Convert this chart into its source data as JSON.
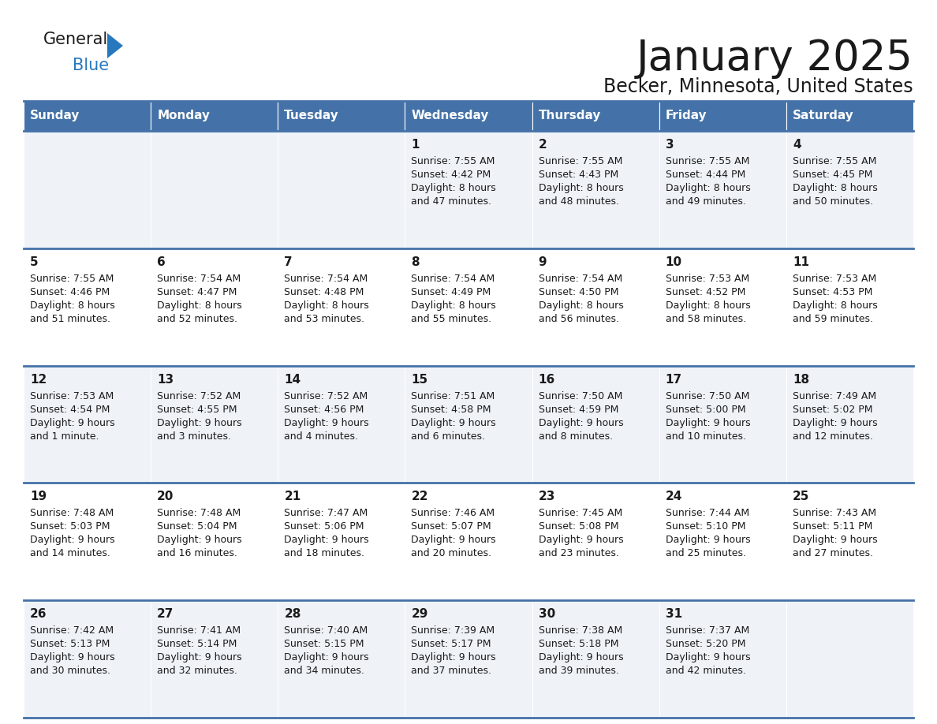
{
  "title": "January 2025",
  "subtitle": "Becker, Minnesota, United States",
  "header_color": "#4472a8",
  "header_text_color": "#ffffff",
  "cell_bg_even": "#eff3f8",
  "cell_bg_odd": "#ffffff",
  "separator_color": "#4472a8",
  "text_color": "#1a1a1a",
  "day_names": [
    "Sunday",
    "Monday",
    "Tuesday",
    "Wednesday",
    "Thursday",
    "Friday",
    "Saturday"
  ],
  "days": [
    {
      "day": 1,
      "col": 3,
      "row": 0,
      "sunrise": "7:55 AM",
      "sunset": "4:42 PM",
      "daylight_line1": "Daylight: 8 hours",
      "daylight_line2": "and 47 minutes."
    },
    {
      "day": 2,
      "col": 4,
      "row": 0,
      "sunrise": "7:55 AM",
      "sunset": "4:43 PM",
      "daylight_line1": "Daylight: 8 hours",
      "daylight_line2": "and 48 minutes."
    },
    {
      "day": 3,
      "col": 5,
      "row": 0,
      "sunrise": "7:55 AM",
      "sunset": "4:44 PM",
      "daylight_line1": "Daylight: 8 hours",
      "daylight_line2": "and 49 minutes."
    },
    {
      "day": 4,
      "col": 6,
      "row": 0,
      "sunrise": "7:55 AM",
      "sunset": "4:45 PM",
      "daylight_line1": "Daylight: 8 hours",
      "daylight_line2": "and 50 minutes."
    },
    {
      "day": 5,
      "col": 0,
      "row": 1,
      "sunrise": "7:55 AM",
      "sunset": "4:46 PM",
      "daylight_line1": "Daylight: 8 hours",
      "daylight_line2": "and 51 minutes."
    },
    {
      "day": 6,
      "col": 1,
      "row": 1,
      "sunrise": "7:54 AM",
      "sunset": "4:47 PM",
      "daylight_line1": "Daylight: 8 hours",
      "daylight_line2": "and 52 minutes."
    },
    {
      "day": 7,
      "col": 2,
      "row": 1,
      "sunrise": "7:54 AM",
      "sunset": "4:48 PM",
      "daylight_line1": "Daylight: 8 hours",
      "daylight_line2": "and 53 minutes."
    },
    {
      "day": 8,
      "col": 3,
      "row": 1,
      "sunrise": "7:54 AM",
      "sunset": "4:49 PM",
      "daylight_line1": "Daylight: 8 hours",
      "daylight_line2": "and 55 minutes."
    },
    {
      "day": 9,
      "col": 4,
      "row": 1,
      "sunrise": "7:54 AM",
      "sunset": "4:50 PM",
      "daylight_line1": "Daylight: 8 hours",
      "daylight_line2": "and 56 minutes."
    },
    {
      "day": 10,
      "col": 5,
      "row": 1,
      "sunrise": "7:53 AM",
      "sunset": "4:52 PM",
      "daylight_line1": "Daylight: 8 hours",
      "daylight_line2": "and 58 minutes."
    },
    {
      "day": 11,
      "col": 6,
      "row": 1,
      "sunrise": "7:53 AM",
      "sunset": "4:53 PM",
      "daylight_line1": "Daylight: 8 hours",
      "daylight_line2": "and 59 minutes."
    },
    {
      "day": 12,
      "col": 0,
      "row": 2,
      "sunrise": "7:53 AM",
      "sunset": "4:54 PM",
      "daylight_line1": "Daylight: 9 hours",
      "daylight_line2": "and 1 minute."
    },
    {
      "day": 13,
      "col": 1,
      "row": 2,
      "sunrise": "7:52 AM",
      "sunset": "4:55 PM",
      "daylight_line1": "Daylight: 9 hours",
      "daylight_line2": "and 3 minutes."
    },
    {
      "day": 14,
      "col": 2,
      "row": 2,
      "sunrise": "7:52 AM",
      "sunset": "4:56 PM",
      "daylight_line1": "Daylight: 9 hours",
      "daylight_line2": "and 4 minutes."
    },
    {
      "day": 15,
      "col": 3,
      "row": 2,
      "sunrise": "7:51 AM",
      "sunset": "4:58 PM",
      "daylight_line1": "Daylight: 9 hours",
      "daylight_line2": "and 6 minutes."
    },
    {
      "day": 16,
      "col": 4,
      "row": 2,
      "sunrise": "7:50 AM",
      "sunset": "4:59 PM",
      "daylight_line1": "Daylight: 9 hours",
      "daylight_line2": "and 8 minutes."
    },
    {
      "day": 17,
      "col": 5,
      "row": 2,
      "sunrise": "7:50 AM",
      "sunset": "5:00 PM",
      "daylight_line1": "Daylight: 9 hours",
      "daylight_line2": "and 10 minutes."
    },
    {
      "day": 18,
      "col": 6,
      "row": 2,
      "sunrise": "7:49 AM",
      "sunset": "5:02 PM",
      "daylight_line1": "Daylight: 9 hours",
      "daylight_line2": "and 12 minutes."
    },
    {
      "day": 19,
      "col": 0,
      "row": 3,
      "sunrise": "7:48 AM",
      "sunset": "5:03 PM",
      "daylight_line1": "Daylight: 9 hours",
      "daylight_line2": "and 14 minutes."
    },
    {
      "day": 20,
      "col": 1,
      "row": 3,
      "sunrise": "7:48 AM",
      "sunset": "5:04 PM",
      "daylight_line1": "Daylight: 9 hours",
      "daylight_line2": "and 16 minutes."
    },
    {
      "day": 21,
      "col": 2,
      "row": 3,
      "sunrise": "7:47 AM",
      "sunset": "5:06 PM",
      "daylight_line1": "Daylight: 9 hours",
      "daylight_line2": "and 18 minutes."
    },
    {
      "day": 22,
      "col": 3,
      "row": 3,
      "sunrise": "7:46 AM",
      "sunset": "5:07 PM",
      "daylight_line1": "Daylight: 9 hours",
      "daylight_line2": "and 20 minutes."
    },
    {
      "day": 23,
      "col": 4,
      "row": 3,
      "sunrise": "7:45 AM",
      "sunset": "5:08 PM",
      "daylight_line1": "Daylight: 9 hours",
      "daylight_line2": "and 23 minutes."
    },
    {
      "day": 24,
      "col": 5,
      "row": 3,
      "sunrise": "7:44 AM",
      "sunset": "5:10 PM",
      "daylight_line1": "Daylight: 9 hours",
      "daylight_line2": "and 25 minutes."
    },
    {
      "day": 25,
      "col": 6,
      "row": 3,
      "sunrise": "7:43 AM",
      "sunset": "5:11 PM",
      "daylight_line1": "Daylight: 9 hours",
      "daylight_line2": "and 27 minutes."
    },
    {
      "day": 26,
      "col": 0,
      "row": 4,
      "sunrise": "7:42 AM",
      "sunset": "5:13 PM",
      "daylight_line1": "Daylight: 9 hours",
      "daylight_line2": "and 30 minutes."
    },
    {
      "day": 27,
      "col": 1,
      "row": 4,
      "sunrise": "7:41 AM",
      "sunset": "5:14 PM",
      "daylight_line1": "Daylight: 9 hours",
      "daylight_line2": "and 32 minutes."
    },
    {
      "day": 28,
      "col": 2,
      "row": 4,
      "sunrise": "7:40 AM",
      "sunset": "5:15 PM",
      "daylight_line1": "Daylight: 9 hours",
      "daylight_line2": "and 34 minutes."
    },
    {
      "day": 29,
      "col": 3,
      "row": 4,
      "sunrise": "7:39 AM",
      "sunset": "5:17 PM",
      "daylight_line1": "Daylight: 9 hours",
      "daylight_line2": "and 37 minutes."
    },
    {
      "day": 30,
      "col": 4,
      "row": 4,
      "sunrise": "7:38 AM",
      "sunset": "5:18 PM",
      "daylight_line1": "Daylight: 9 hours",
      "daylight_line2": "and 39 minutes."
    },
    {
      "day": 31,
      "col": 5,
      "row": 4,
      "sunrise": "7:37 AM",
      "sunset": "5:20 PM",
      "daylight_line1": "Daylight: 9 hours",
      "daylight_line2": "and 42 minutes."
    }
  ],
  "logo_color_general": "#1a1a1a",
  "logo_color_blue": "#2878be",
  "logo_triangle_color": "#2878be",
  "title_fontsize": 38,
  "subtitle_fontsize": 17,
  "dayname_fontsize": 11,
  "daynum_fontsize": 11,
  "cell_text_fontsize": 9
}
